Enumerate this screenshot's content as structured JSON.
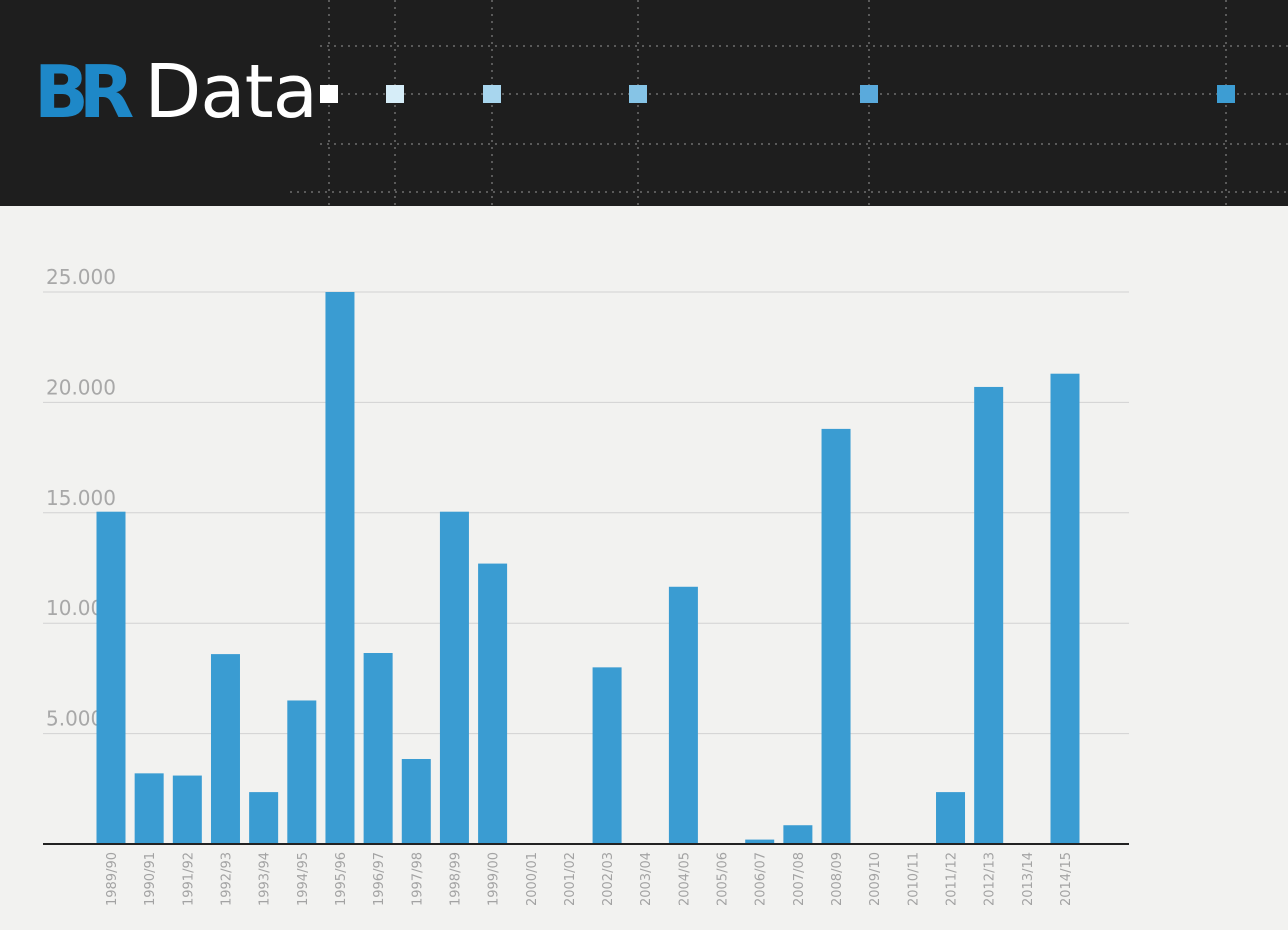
{
  "header": {
    "logo_br": "BR",
    "logo_data": "Data",
    "marker_colors": [
      "#ffffff",
      "#d6edf8",
      "#a8d6ee",
      "#86c4e6",
      "#5aaadc",
      "#3d9dd3"
    ]
  },
  "colors": {
    "header_bg": "#1e1e1e",
    "page_bg": "#f2f2f0",
    "bar": "#3a9cd2",
    "brand_blue": "#1e88c8"
  },
  "chart_data": {
    "type": "bar",
    "title": "",
    "xlabel": "",
    "ylabel": "",
    "ylim": [
      0,
      25000
    ],
    "grid": true,
    "ytick_values": [
      5000,
      10000,
      15000,
      20000,
      25000
    ],
    "ytick_labels": [
      "5.000",
      "10.000",
      "15.000",
      "20.000",
      "25.000"
    ],
    "categories": [
      "1989/90",
      "1990/91",
      "1991/92",
      "1992/93",
      "1993/94",
      "1994/95",
      "1995/96",
      "1996/97",
      "1997/98",
      "1998/99",
      "1999/00",
      "2000/01",
      "2001/02",
      "2002/03",
      "2003/04",
      "2004/05",
      "2005/06",
      "2006/07",
      "2007/08",
      "2008/09",
      "2009/10",
      "2010/11",
      "2011/12",
      "2012/13",
      "2013/14",
      "2014/15"
    ],
    "values": [
      15050,
      3200,
      3100,
      8600,
      2350,
      6500,
      25000,
      8650,
      3850,
      15050,
      12700,
      0,
      0,
      8000,
      0,
      11650,
      0,
      200,
      850,
      18800,
      0,
      0,
      2350,
      20700,
      0,
      21300
    ]
  }
}
